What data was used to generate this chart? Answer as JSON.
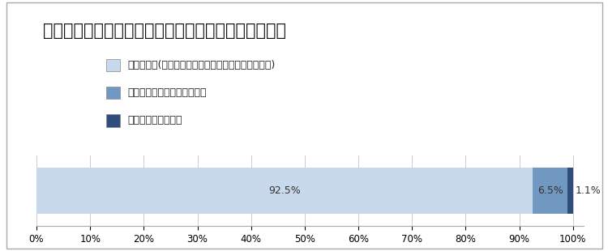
{
  "title": "経過措置適用企業における基準適用年齢到達者の状況",
  "values": [
    92.5,
    6.5,
    1.1
  ],
  "labels": [
    "92.5%",
    "6.5%",
    "1.1%"
  ],
  "legend_labels": [
    "継続雇用者(基準に該当し引き続き継続雇用された者)",
    "継続雇用を希望しなかった者",
    "基準に該当しない者"
  ],
  "colors": [
    "#c9d9ec",
    "#7098c0",
    "#2e4d7b"
  ],
  "xticks": [
    0,
    10,
    20,
    30,
    40,
    50,
    60,
    70,
    80,
    90,
    100
  ],
  "xtick_labels": [
    "0%",
    "10%",
    "20%",
    "30%",
    "40%",
    "50%",
    "60%",
    "70%",
    "80%",
    "90%",
    "100%"
  ],
  "xlim": [
    0,
    102
  ],
  "background_color": "#ffffff",
  "title_fontsize": 15,
  "legend_fontsize": 9,
  "label_fontsize": 9,
  "tick_fontsize": 8.5
}
